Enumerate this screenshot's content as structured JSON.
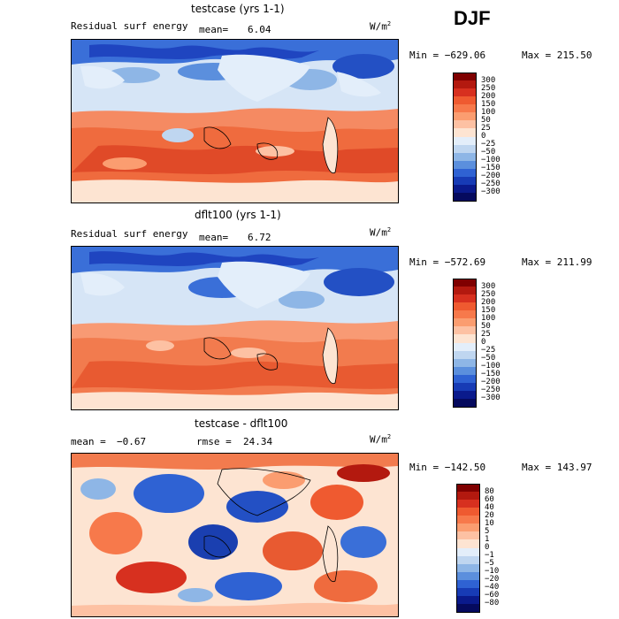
{
  "season_label": "DJF",
  "units": "W/m",
  "units_sup": "2",
  "panels": [
    {
      "title": "testcase (yrs 1-1)",
      "left_label": "Residual surf energy",
      "stat_label": "mean=",
      "stat_value": "6.04",
      "min_text": "Min = −629.06",
      "max_text": "Max = 215.50",
      "levels": [
        "300",
        "250",
        "200",
        "150",
        "100",
        "50",
        "25",
        "0",
        "−25",
        "−50",
        "−100",
        "−150",
        "−200",
        "−250",
        "−300"
      ],
      "colors": [
        "#7f0000",
        "#b3190f",
        "#d7301f",
        "#ef5a30",
        "#f7794b",
        "#fb9d70",
        "#fdc1a3",
        "#fde4d2",
        "#e3eefa",
        "#bfd6f0",
        "#8eb6e6",
        "#5b8fdd",
        "#2f62d3",
        "#173bb5",
        "#0a1a8c",
        "#050a5e"
      ]
    },
    {
      "title": "dflt100 (yrs 1-1)",
      "left_label": "Residual surf energy",
      "stat_label": "mean=",
      "stat_value": "6.72",
      "min_text": "Min = −572.69",
      "max_text": "Max = 211.99",
      "levels": [
        "300",
        "250",
        "200",
        "150",
        "100",
        "50",
        "25",
        "0",
        "−25",
        "−50",
        "−100",
        "−150",
        "−200",
        "−250",
        "−300"
      ],
      "colors": [
        "#7f0000",
        "#b3190f",
        "#d7301f",
        "#ef5a30",
        "#f7794b",
        "#fb9d70",
        "#fdc1a3",
        "#fde4d2",
        "#e3eefa",
        "#bfd6f0",
        "#8eb6e6",
        "#5b8fdd",
        "#2f62d3",
        "#173bb5",
        "#0a1a8c",
        "#050a5e"
      ]
    },
    {
      "title": "testcase - dflt100",
      "left_label": "mean =",
      "left_value": "−0.67",
      "stat_label": "rmse =",
      "stat_value": "24.34",
      "min_text": "Min = −142.50",
      "max_text": "Max = 143.97",
      "levels": [
        "80",
        "60",
        "40",
        "20",
        "10",
        "5",
        "1",
        "0",
        "−1",
        "−5",
        "−10",
        "−20",
        "−40",
        "−60",
        "−80"
      ],
      "colors": [
        "#7f0000",
        "#b3190f",
        "#d7301f",
        "#ef5a30",
        "#f7794b",
        "#fb9d70",
        "#fdc1a3",
        "#fde4d2",
        "#e3eefa",
        "#bfd6f0",
        "#8eb6e6",
        "#5b8fdd",
        "#2f62d3",
        "#173bb5",
        "#0a1a8c",
        "#050a5e"
      ]
    }
  ],
  "chart_data": [
    {
      "type": "heatmap",
      "title": "testcase (yrs 1-1)",
      "variable": "Residual surf energy",
      "season": "DJF",
      "units": "W/m2",
      "mean": 6.04,
      "min": -629.06,
      "max": 215.5,
      "colorbar_levels": [
        300,
        250,
        200,
        150,
        100,
        50,
        25,
        0,
        -25,
        -50,
        -100,
        -150,
        -200,
        -250,
        -300
      ]
    },
    {
      "type": "heatmap",
      "title": "dflt100 (yrs 1-1)",
      "variable": "Residual surf energy",
      "season": "DJF",
      "units": "W/m2",
      "mean": 6.72,
      "min": -572.69,
      "max": 211.99,
      "colorbar_levels": [
        300,
        250,
        200,
        150,
        100,
        50,
        25,
        0,
        -25,
        -50,
        -100,
        -150,
        -200,
        -250,
        -300
      ]
    },
    {
      "type": "heatmap",
      "title": "testcase - dflt100",
      "season": "DJF",
      "units": "W/m2",
      "mean": -0.67,
      "rmse": 24.34,
      "min": -142.5,
      "max": 143.97,
      "colorbar_levels": [
        80,
        60,
        40,
        20,
        10,
        5,
        1,
        0,
        -1,
        -5,
        -10,
        -20,
        -40,
        -60,
        -80
      ]
    }
  ]
}
